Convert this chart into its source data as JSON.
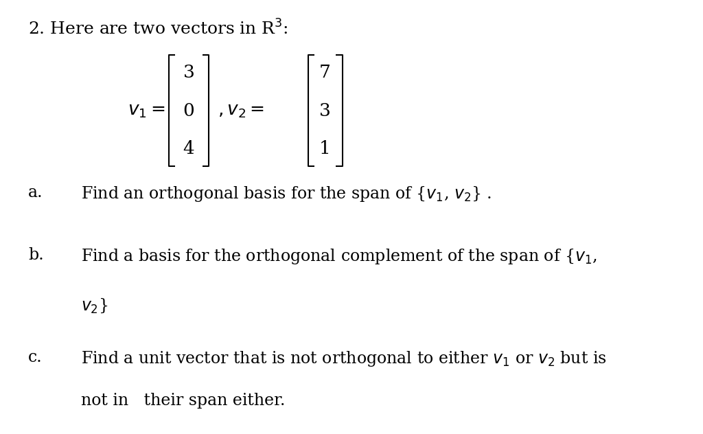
{
  "bg_color": "#ffffff",
  "font_size_title": 18,
  "font_size_body": 17,
  "font_size_matrix": 19,
  "v1_values": [
    "3",
    "0",
    "4"
  ],
  "v2_values": [
    "7",
    "3",
    "1"
  ],
  "title_line": "2. Here are two vectors in R$^3$:",
  "matrix_label1": "$v_1 = $",
  "matrix_label2": "$, v_2 = $",
  "part_a_label": "a.",
  "part_a_text1": "Find an orthogonal basis for the span of {$v_1$, $v_2$} .",
  "part_b_label": "b.",
  "part_b_text1": "Find a basis for the orthogonal complement of the span of {$v_1$,",
  "part_b_text2": "$v_2$}",
  "part_c_label": "c.",
  "part_c_text1": "Find a unit vector that is not orthogonal to either $v_1$ or $v_2$ but is",
  "part_c_text2": "not in   their span either."
}
